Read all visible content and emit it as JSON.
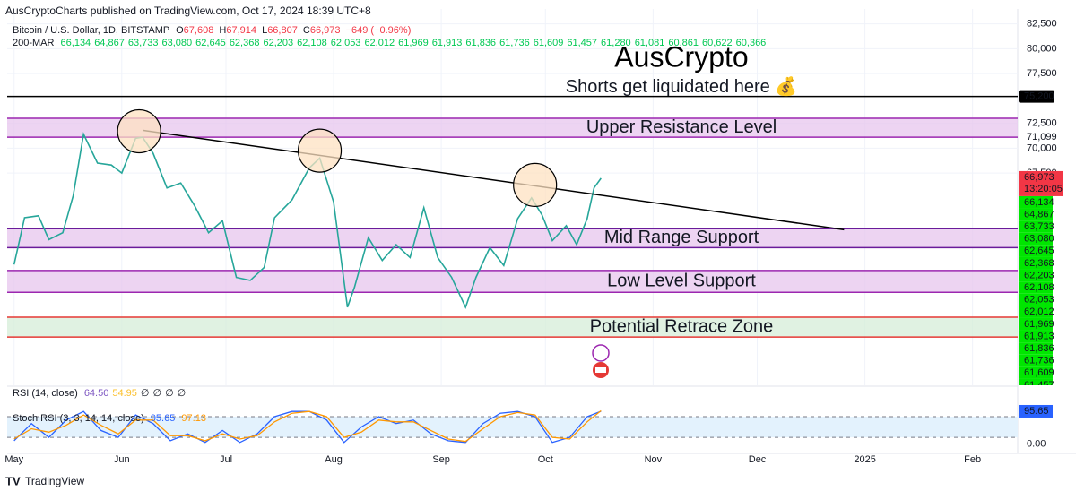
{
  "header": {
    "publisher": "AusCryptoCharts published on TradingView.com, Oct 17, 2024 18:39 UTC+8",
    "brand": "TradingView"
  },
  "legend": {
    "symbol": "Bitcoin / U.S. Dollar, 1D, BITSTAMP",
    "ohlc": [
      {
        "key": "O",
        "value": "67,608"
      },
      {
        "key": "H",
        "value": "67,914"
      },
      {
        "key": "L",
        "value": "66,807"
      },
      {
        "key": "C",
        "value": "66,973"
      }
    ],
    "change": "−649 (−0.96%)",
    "ma_name": "200-MAR",
    "ma_values": [
      "66,134",
      "64,867",
      "63,733",
      "63,080",
      "62,645",
      "62,368",
      "62,203",
      "62,108",
      "62,053",
      "62,012",
      "61,969",
      "61,913",
      "61,836",
      "61,736",
      "61,609",
      "61,457",
      "61,280",
      "61,081",
      "60,861",
      "60,622",
      "60,366"
    ],
    "rsi_name": "RSI (14, close)",
    "rsi_values": [
      "64.50",
      "54.95",
      "∅",
      "∅",
      "∅",
      "∅"
    ]
  },
  "chart_data": [
    {
      "type": "line",
      "title": "AusCrypto",
      "color": "#26a69a",
      "x": [
        0,
        3,
        7,
        10,
        14,
        17,
        20,
        24,
        28,
        31,
        35,
        37,
        40,
        44,
        48,
        52,
        56,
        60,
        64,
        68,
        72,
        75,
        80,
        85,
        88,
        92,
        96,
        98,
        102,
        106,
        110,
        114,
        118,
        122,
        126,
        130,
        133,
        137,
        141,
        145,
        149,
        152,
        155,
        159,
        162,
        165,
        167,
        169
      ],
      "values": [
        58300,
        63000,
        63200,
        60800,
        61500,
        65200,
        71400,
        68500,
        68300,
        67500,
        71000,
        71100,
        69500,
        66000,
        66500,
        64200,
        61500,
        62700,
        57000,
        56700,
        58000,
        63000,
        64800,
        68000,
        69000,
        64600,
        54000,
        56000,
        61000,
        58700,
        60300,
        59000,
        64000,
        59000,
        57000,
        54000,
        57000,
        60000,
        58200,
        62900,
        65000,
        63300,
        60700,
        62200,
        60300,
        62900,
        66000,
        66973
      ],
      "xlim": [
        -2,
        289
      ],
      "xticks": [
        {
          "value": 0,
          "label": "May"
        },
        {
          "value": 31,
          "label": "Jun"
        },
        {
          "value": 61,
          "label": "Jul"
        },
        {
          "value": 92,
          "label": "Aug"
        },
        {
          "value": 123,
          "label": "Sep"
        },
        {
          "value": 153,
          "label": "Oct"
        },
        {
          "value": 184,
          "label": "Nov"
        },
        {
          "value": 214,
          "label": "Dec"
        },
        {
          "value": 245,
          "label": "2025"
        },
        {
          "value": 276,
          "label": "Feb"
        }
      ],
      "ylim": [
        46150,
        84000
      ],
      "yticks": [
        {
          "value": 82500,
          "label": "82,500"
        },
        {
          "value": 80000,
          "label": "80,000"
        },
        {
          "value": 77500,
          "label": "77,500"
        },
        {
          "value": 72500,
          "label": "72,500"
        },
        {
          "value": 71099,
          "label": "71,099"
        },
        {
          "value": 70000,
          "label": "70,000"
        },
        {
          "value": 67500,
          "label": "67,500"
        }
      ],
      "grid": true,
      "last_label": "66,973",
      "countdown": "13:20:05",
      "levels": [
        {
          "label": "Shorts get liquidated here 💰",
          "value": 75200,
          "value_label": "75,200",
          "color": "#000000"
        }
      ],
      "zones": [
        {
          "label": "Upper Resistance Level",
          "from": 71100,
          "to": 73000,
          "fill": "#e7c6ee",
          "stroke": "#9c27b0"
        },
        {
          "label": "Mid Range Support",
          "from": 60000,
          "to": 61900,
          "fill": "#e7c6ee",
          "stroke": "#6a1b9a"
        },
        {
          "label": "Low Level Support",
          "from": 55500,
          "to": 57700,
          "fill": "#e7c6ee",
          "stroke": "#9c27b0"
        },
        {
          "label": "Potential Retrace Zone",
          "from": 51000,
          "to": 53000,
          "fill": "#d6eed8",
          "stroke": "#e53935"
        }
      ],
      "trendline": {
        "x": [
          37,
          239
        ],
        "values": [
          71800,
          61800
        ],
        "color": "#000000"
      },
      "circles": {
        "x": [
          36,
          88,
          150
        ],
        "values": [
          71700,
          69750,
          66300
        ],
        "fill": "#fde2c2",
        "stroke": "#000000"
      }
    },
    {
      "type": "line",
      "title": "Stoch RSI (3, 3, 14, 14, close)",
      "x": [
        0,
        5,
        10,
        15,
        20,
        25,
        30,
        35,
        40,
        45,
        50,
        55,
        60,
        65,
        70,
        75,
        80,
        85,
        90,
        95,
        100,
        105,
        110,
        115,
        120,
        125,
        130,
        135,
        140,
        145,
        150,
        155,
        160,
        165,
        169
      ],
      "series": [
        {
          "color": "#2962ff",
          "values": [
            10,
            60,
            20,
            70,
            95,
            40,
            20,
            85,
            60,
            10,
            30,
            5,
            40,
            5,
            30,
            80,
            95,
            95,
            70,
            5,
            50,
            80,
            60,
            70,
            30,
            10,
            5,
            60,
            90,
            95,
            80,
            5,
            20,
            80,
            95.65
          ]
        },
        {
          "color": "#ff9800",
          "values": [
            15,
            45,
            35,
            55,
            85,
            55,
            30,
            70,
            70,
            25,
            25,
            10,
            30,
            15,
            25,
            65,
            90,
            95,
            80,
            20,
            35,
            70,
            65,
            65,
            40,
            15,
            8,
            45,
            80,
            92,
            85,
            20,
            15,
            65,
            97.13
          ]
        }
      ],
      "xlim": [
        -2,
        289
      ],
      "ylim": [
        -24,
        119
      ],
      "yticks": [
        {
          "value": 0,
          "label": "0.00"
        }
      ],
      "band": [
        20,
        80
      ],
      "band_fill": "#e3f2fd"
    }
  ]
}
